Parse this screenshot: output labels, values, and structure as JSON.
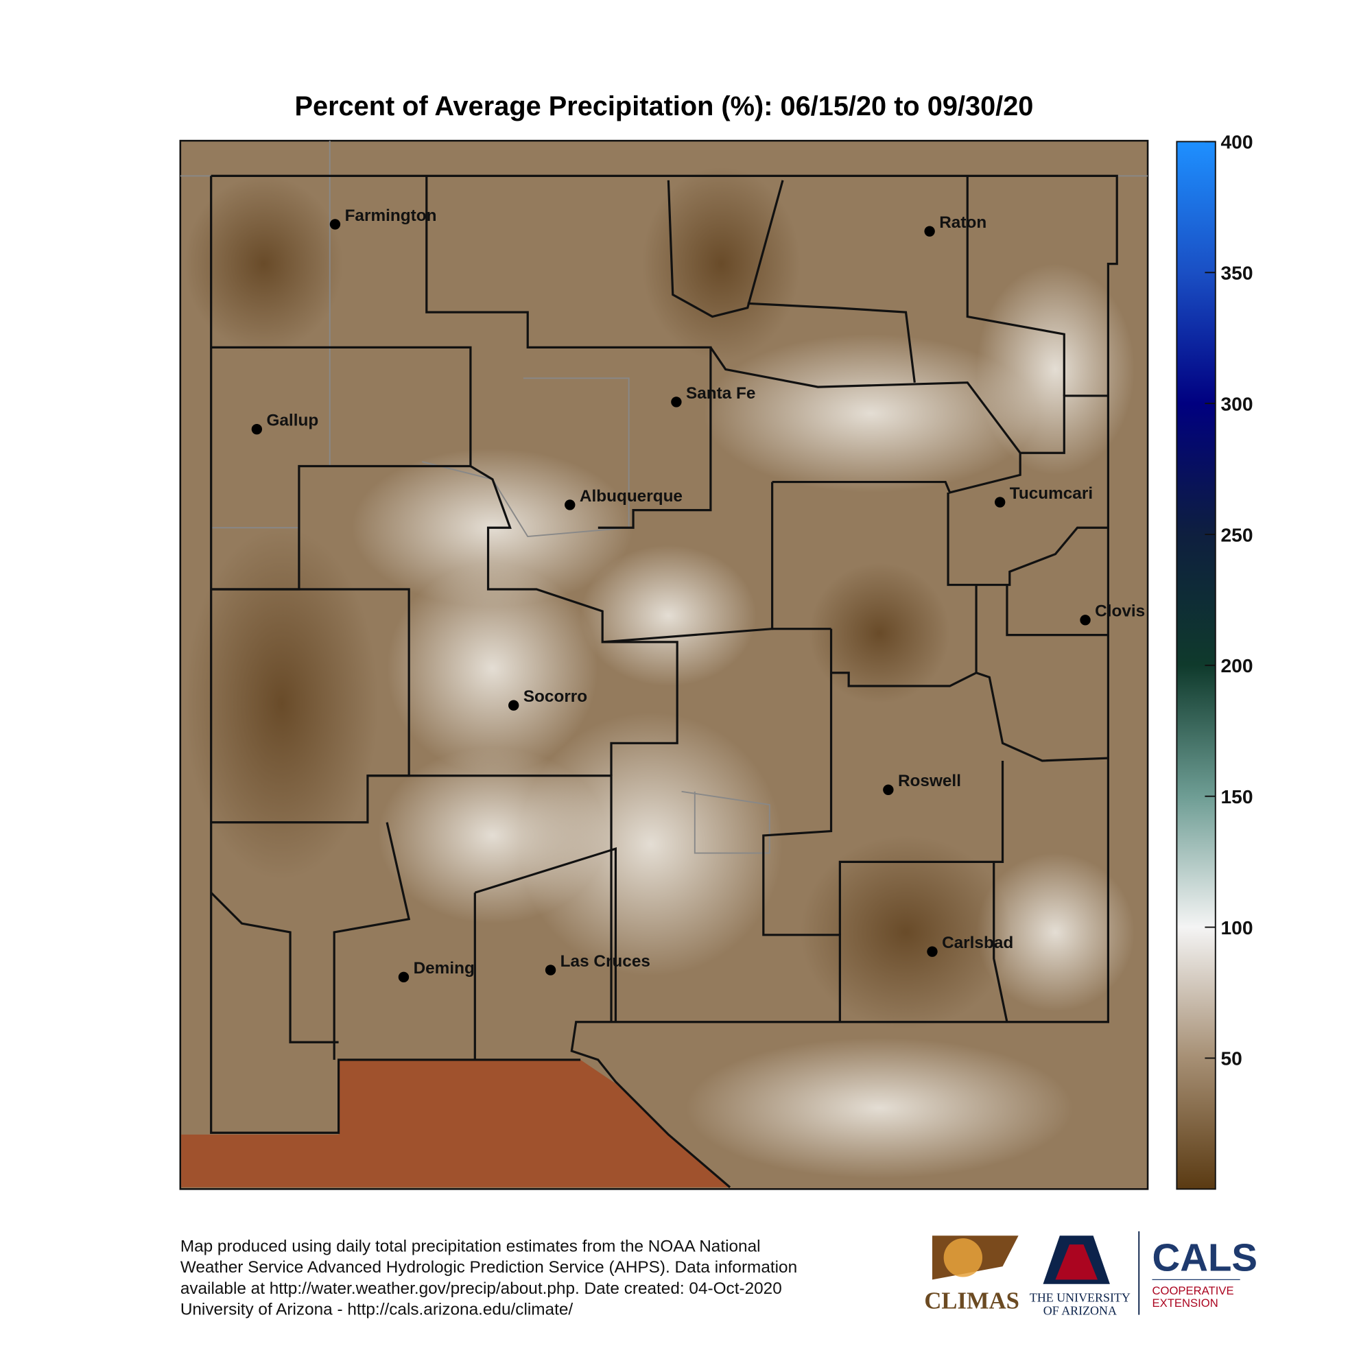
{
  "map": {
    "title": "Percent of Average Precipitation (%): 06/15/20 to 09/30/20",
    "cities": [
      "Farmington",
      "Raton",
      "Santa Fe",
      "Gallup",
      "Albuquerque",
      "Tucumcari",
      "Clovis",
      "Socorro",
      "Roswell",
      "Carlsbad",
      "Deming",
      "Las Cruces"
    ],
    "colorbar": {
      "lim": [
        0,
        400
      ],
      "ticks": [
        50,
        100,
        150,
        200,
        250,
        300,
        350,
        400
      ]
    },
    "footer": [
      "Map produced using daily total precipitation estimates from the NOAA National",
      "Weather Service Advanced Hydrologic Prediction Service (AHPS). Data information",
      "available at http://water.weather.gov/precip/about.php. Date created: 04-Oct-2020",
      "University of Arizona - http://cals.arizona.edu/climate/"
    ],
    "logos": {
      "climas": "CLIMAS",
      "ua": [
        "THE UNIVERSITY",
        "OF ARIZONA"
      ],
      "cals": "CALS",
      "cals_sub": [
        "COOPERATIVE",
        "EXTENSION"
      ]
    }
  }
}
